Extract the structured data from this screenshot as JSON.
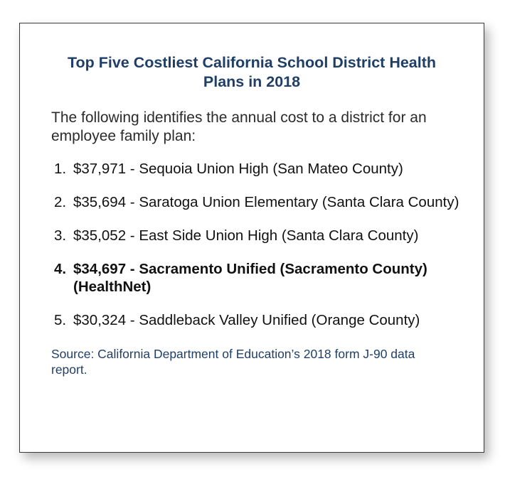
{
  "title": "Top Five Costliest California School District Health Plans in 2018",
  "intro": "The following identifies the annual cost to a district for an employee family plan:",
  "items": [
    {
      "number": "1.",
      "text": "$37,971 - Sequoia Union High (San Mateo County)",
      "bold": false
    },
    {
      "number": "2.",
      "text": "$35,694 - Saratoga Union Elementary (Santa Clara County)",
      "bold": false
    },
    {
      "number": "3.",
      "text": "$35,052 - East Side Union High (Santa Clara County)",
      "bold": false
    },
    {
      "number": "4.",
      "text": "$34,697 - Sacramento Unified (Sacramento County) (HealthNet)",
      "bold": true
    },
    {
      "number": "5.",
      "text": "$30,324 - Saddleback Valley Unified (Orange County)",
      "bold": false
    }
  ],
  "source": "Source: California Department of Education’s 2018 form J-90 data report.",
  "colors": {
    "title": "#1f3f67",
    "source": "#1f3f67",
    "body_text": "#111111",
    "card_border": "#3a3a3a"
  }
}
